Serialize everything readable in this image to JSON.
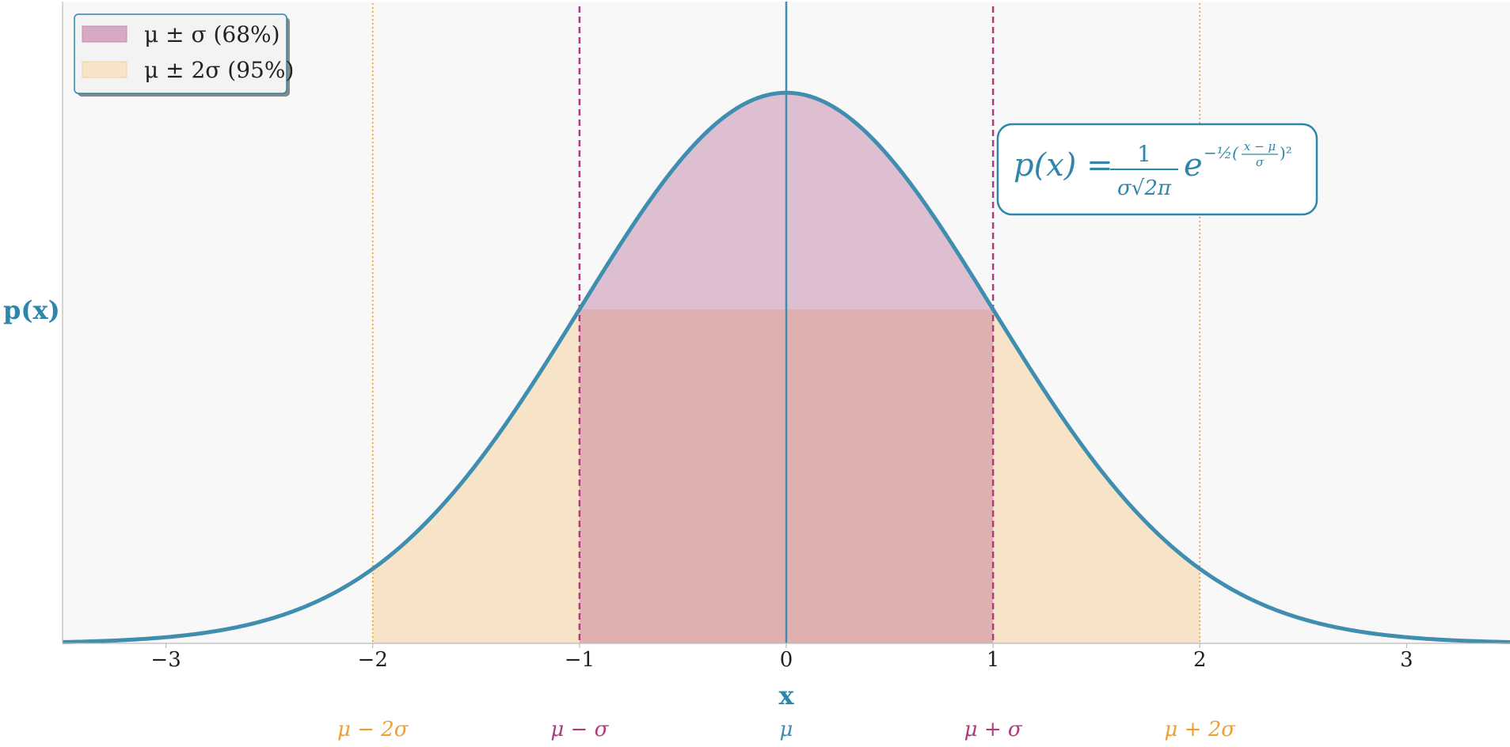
{
  "chart_data": {
    "type": "area",
    "title": "",
    "xlabel": "x",
    "ylabel": "p(x)",
    "xlim": [
      -3.5,
      3.5
    ],
    "ylim": [
      0,
      0.465
    ],
    "grid": false,
    "legend_position": "top-left",
    "x_ticks": [
      -3,
      -2,
      -1,
      0,
      1,
      2,
      3
    ],
    "x_tick_labels": [
      "−3",
      "−2",
      "−1",
      "0",
      "1",
      "2",
      "3"
    ],
    "y_ticks": [],
    "series": [
      {
        "name": "",
        "function": "normal_pdf",
        "mu": 0,
        "sigma": 1,
        "color": "#3f8eaf"
      }
    ],
    "bands": [
      {
        "name": "μ ± σ (68%)",
        "from": -1,
        "to": 1,
        "color": "#c98cb0"
      },
      {
        "name": "μ ± 2σ (95%)",
        "from": -2,
        "to": 2,
        "color": "#f3d3a3"
      }
    ],
    "reference_lines": [
      {
        "x": -2,
        "label": "μ − 2σ",
        "style": "dotted",
        "color": "#f29e2e"
      },
      {
        "x": -1,
        "label": "μ − σ",
        "style": "dashed",
        "color": "#b03a7e"
      },
      {
        "x": 0,
        "label": "μ",
        "style": "solid",
        "color": "#3f8eaf"
      },
      {
        "x": 1,
        "label": "μ + σ",
        "style": "dashed",
        "color": "#b03a7e"
      },
      {
        "x": 2,
        "label": "μ + 2σ",
        "style": "dotted",
        "color": "#f29e2e"
      }
    ],
    "annotations": [
      {
        "text": "p(x) = 1/(σ√2π) e^(−½((x−μ)/σ)²)"
      }
    ]
  },
  "formula": {
    "lhs": "p(x) =",
    "numerator": "1",
    "denominator": "σ√2π",
    "base": "e",
    "exponent": "−½(",
    "exp_num": "x − μ",
    "exp_den": "σ",
    "exp_close": ")²"
  },
  "colors": {
    "curve": "#3f8eaf",
    "band_1sigma": "#ddbfd1",
    "band_1sigma_legend": "#d7a9c4",
    "band_2sigma": "#f7e3c7",
    "band_overlap": "#deb0b0",
    "line_1sigma": "#b03a7e",
    "line_2sigma": "#f29e2e",
    "mean_line": "#3f8eaf",
    "plot_background": "#f8f8f8"
  }
}
